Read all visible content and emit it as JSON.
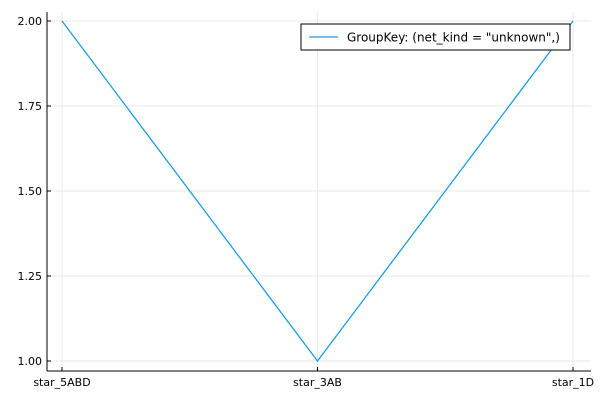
{
  "chart_data": {
    "type": "line",
    "categories": [
      "star_5ABD",
      "star_3AB",
      "star_1D"
    ],
    "series": [
      {
        "name": "GroupKey: (net_kind = \"unknown\",)",
        "values": [
          2.0,
          1.0,
          2.0
        ],
        "color": "#1e9ee0"
      }
    ],
    "yticks": [
      "1.00",
      "1.25",
      "1.50",
      "1.75",
      "2.00"
    ],
    "ylim": [
      1.0,
      2.0
    ],
    "grid": true,
    "legend_position": "top-right"
  }
}
